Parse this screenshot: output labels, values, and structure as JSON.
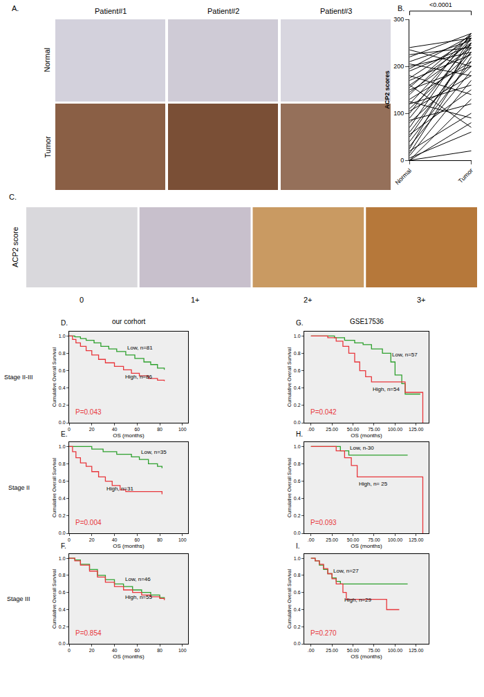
{
  "chart_data": [
    {
      "type": "paired_line",
      "letter": "B.",
      "categories": [
        "Normal",
        "Tumor"
      ],
      "ylabel": "ACP2 scores",
      "ylim": [
        0,
        300
      ],
      "yticks": [
        0,
        100,
        200,
        300
      ],
      "annotation": "<0.0001",
      "color": "#000000",
      "pairs": [
        [
          0,
          20
        ],
        [
          0,
          80
        ],
        [
          0,
          130
        ],
        [
          5,
          60
        ],
        [
          10,
          170
        ],
        [
          15,
          220
        ],
        [
          20,
          100
        ],
        [
          25,
          250
        ],
        [
          30,
          190
        ],
        [
          40,
          210
        ],
        [
          50,
          240
        ],
        [
          55,
          150
        ],
        [
          60,
          230
        ],
        [
          70,
          260
        ],
        [
          80,
          200
        ],
        [
          85,
          120
        ],
        [
          90,
          250
        ],
        [
          100,
          270
        ],
        [
          105,
          180
        ],
        [
          110,
          230
        ],
        [
          120,
          260
        ],
        [
          125,
          90
        ],
        [
          130,
          210
        ],
        [
          140,
          265
        ],
        [
          145,
          240
        ],
        [
          150,
          200
        ],
        [
          155,
          270
        ],
        [
          160,
          250
        ],
        [
          170,
          225
        ],
        [
          175,
          260
        ],
        [
          180,
          140
        ],
        [
          190,
          245
        ],
        [
          195,
          265
        ],
        [
          200,
          230
        ],
        [
          205,
          180
        ],
        [
          210,
          255
        ],
        [
          220,
          270
        ],
        [
          225,
          240
        ],
        [
          235,
          200
        ],
        [
          240,
          260
        ],
        [
          160,
          70
        ],
        [
          120,
          160
        ]
      ]
    },
    {
      "type": "line",
      "letter": "D.",
      "title": "our corhort",
      "row_label": "Stage II-III",
      "xlabel": "OS (months)",
      "ylabel": "Cumulative Overall Survival",
      "xlim": [
        0,
        105
      ],
      "xticks": [
        0,
        20,
        40,
        60,
        80,
        100
      ],
      "ylim": [
        0,
        1.05
      ],
      "yticks": [
        {
          "value": 0,
          "label": "0.0"
        },
        {
          "value": 0.2,
          "label": "0.2"
        },
        {
          "value": 0.4,
          "label": "0.4"
        },
        {
          "value": 0.6,
          "label": "0.6"
        },
        {
          "value": 0.8,
          "label": "0.8"
        },
        {
          "value": 1,
          "label": "1.0"
        }
      ],
      "annotation": "P=0.043",
      "series": [
        {
          "name": "Low, n=81",
          "color": "#2ca02c",
          "line_style": "step",
          "x": [
            0,
            5,
            10,
            15,
            22,
            28,
            35,
            42,
            50,
            58,
            66,
            72,
            78,
            84
          ],
          "values": [
            1,
            0.99,
            0.97,
            0.95,
            0.92,
            0.88,
            0.85,
            0.82,
            0.78,
            0.74,
            0.7,
            0.67,
            0.63,
            0.61
          ]
        },
        {
          "name": "High, n=86",
          "color": "#e8363b",
          "line_style": "step",
          "x": [
            0,
            3,
            6,
            10,
            15,
            20,
            26,
            32,
            40,
            48,
            55,
            62,
            70,
            78,
            84
          ],
          "values": [
            1,
            0.96,
            0.92,
            0.88,
            0.83,
            0.78,
            0.73,
            0.69,
            0.65,
            0.61,
            0.57,
            0.54,
            0.51,
            0.49,
            0.48
          ]
        }
      ]
    },
    {
      "type": "line",
      "letter": "E.",
      "row_label": "Stage II",
      "xlabel": "OS (months)",
      "ylabel": "Cumulative Overall Survival",
      "xlim": [
        0,
        105
      ],
      "xticks": [
        0,
        20,
        40,
        60,
        80,
        100
      ],
      "ylim": [
        0,
        1.05
      ],
      "yticks": [
        {
          "value": 0,
          "label": "0.0"
        },
        {
          "value": 0.2,
          "label": "0.2"
        },
        {
          "value": 0.4,
          "label": "0.4"
        },
        {
          "value": 0.6,
          "label": "0.6"
        },
        {
          "value": 0.8,
          "label": "0.8"
        },
        {
          "value": 1,
          "label": "1.0"
        }
      ],
      "annotation": "P=0.004",
      "series": [
        {
          "name": "Low, n=35",
          "color": "#2ca02c",
          "line_style": "step",
          "x": [
            0,
            20,
            30,
            42,
            55,
            62,
            70,
            78,
            82
          ],
          "values": [
            1,
            0.97,
            0.94,
            0.91,
            0.88,
            0.85,
            0.8,
            0.77,
            0.75
          ]
        },
        {
          "name": "High, n=31",
          "color": "#e8363b",
          "line_style": "step",
          "x": [
            0,
            3,
            6,
            10,
            15,
            20,
            26,
            32,
            38,
            45,
            50,
            82
          ],
          "values": [
            1,
            0.94,
            0.87,
            0.81,
            0.77,
            0.71,
            0.65,
            0.6,
            0.55,
            0.5,
            0.48,
            0.45
          ]
        }
      ]
    },
    {
      "type": "line",
      "letter": "F.",
      "row_label": "Stage III",
      "xlabel": "OS (months)",
      "ylabel": "Cumulative Overall Survival",
      "xlim": [
        0,
        105
      ],
      "xticks": [
        0,
        20,
        40,
        60,
        80,
        100
      ],
      "ylim": [
        0,
        1.05
      ],
      "yticks": [
        {
          "value": 0,
          "label": "0.0"
        },
        {
          "value": 0.2,
          "label": "0.2"
        },
        {
          "value": 0.4,
          "label": "0.4"
        },
        {
          "value": 0.6,
          "label": "0.6"
        },
        {
          "value": 0.8,
          "label": "0.8"
        },
        {
          "value": 1,
          "label": "1.0"
        }
      ],
      "annotation": "P=0.854",
      "series": [
        {
          "name": "Low, n=46",
          "color": "#2ca02c",
          "line_style": "step",
          "x": [
            0,
            5,
            10,
            18,
            25,
            32,
            40,
            48,
            56,
            64,
            72,
            80,
            84
          ],
          "values": [
            1,
            0.98,
            0.93,
            0.87,
            0.8,
            0.75,
            0.7,
            0.67,
            0.63,
            0.6,
            0.57,
            0.54,
            0.52
          ]
        },
        {
          "name": "High, n=55",
          "color": "#e8363b",
          "line_style": "step",
          "x": [
            0,
            5,
            10,
            18,
            25,
            32,
            40,
            48,
            56,
            64,
            72,
            80,
            84
          ],
          "values": [
            1,
            0.97,
            0.92,
            0.85,
            0.78,
            0.72,
            0.67,
            0.63,
            0.6,
            0.57,
            0.55,
            0.53,
            0.51
          ]
        }
      ]
    },
    {
      "type": "line",
      "letter": "G.",
      "title": "GSE17536",
      "xlabel": "OS (months)",
      "ylabel": "Cumulative Overall Survival",
      "xlim": [
        -8,
        140
      ],
      "xticks": [
        {
          "value": 0,
          "label": ".00"
        },
        {
          "value": 25,
          "label": "25.00"
        },
        {
          "value": 50,
          "label": "50.00"
        },
        {
          "value": 75,
          "label": "75.00"
        },
        {
          "value": 100,
          "label": "100.00"
        },
        {
          "value": 125,
          "label": "125.00"
        }
      ],
      "ylim": [
        0,
        1.05
      ],
      "yticks": [
        {
          "value": 0,
          "label": "0.0"
        },
        {
          "value": 0.2,
          "label": "0.2"
        },
        {
          "value": 0.4,
          "label": "0.4"
        },
        {
          "value": 0.6,
          "label": "0.6"
        },
        {
          "value": 0.8,
          "label": "0.8"
        },
        {
          "value": 1,
          "label": "1.0"
        }
      ],
      "annotation": "P=0.042",
      "series": [
        {
          "name": "Low, n=57",
          "color": "#2ca02c",
          "line_style": "step",
          "x": [
            0,
            28,
            40,
            52,
            62,
            72,
            85,
            95,
            100,
            108,
            112,
            130
          ],
          "values": [
            1,
            0.98,
            0.95,
            0.92,
            0.9,
            0.85,
            0.8,
            0.7,
            0.55,
            0.45,
            0.33,
            0.33
          ]
        },
        {
          "name": "High, n=54",
          "color": "#e8363b",
          "line_style": "step",
          "x": [
            0,
            20,
            30,
            38,
            45,
            52,
            58,
            65,
            72,
            80,
            105,
            112,
            132,
            133
          ],
          "values": [
            1,
            0.98,
            0.94,
            0.88,
            0.8,
            0.7,
            0.6,
            0.53,
            0.47,
            0.47,
            0.47,
            0.35,
            0.35,
            0
          ]
        }
      ]
    },
    {
      "type": "line",
      "letter": "H.",
      "xlabel": "OS (months)",
      "ylabel": "Cumulative Overall Survival",
      "xlim": [
        -8,
        140
      ],
      "xticks": [
        {
          "value": 0,
          "label": ".00"
        },
        {
          "value": 25,
          "label": "25.00"
        },
        {
          "value": 50,
          "label": "50.00"
        },
        {
          "value": 75,
          "label": "75.00"
        },
        {
          "value": 100,
          "label": "100.00"
        },
        {
          "value": 125,
          "label": "125.00"
        }
      ],
      "ylim": [
        0,
        1.05
      ],
      "yticks": [
        {
          "value": 0,
          "label": "0.0"
        },
        {
          "value": 0.2,
          "label": "0.2"
        },
        {
          "value": 0.4,
          "label": "0.4"
        },
        {
          "value": 0.6,
          "label": "0.6"
        },
        {
          "value": 0.8,
          "label": "0.8"
        },
        {
          "value": 1,
          "label": "1.0"
        }
      ],
      "annotation": "P=0.093",
      "series": [
        {
          "name": "Low, n-30",
          "color": "#2ca02c",
          "line_style": "step",
          "x": [
            0,
            35,
            45,
            115
          ],
          "values": [
            1,
            0.95,
            0.9,
            0.9
          ]
        },
        {
          "name": "High, n= 25",
          "color": "#e8363b",
          "line_style": "step",
          "x": [
            0,
            30,
            40,
            48,
            55,
            130,
            133
          ],
          "values": [
            1,
            0.95,
            0.87,
            0.78,
            0.65,
            0.65,
            0
          ]
        }
      ]
    },
    {
      "type": "line",
      "letter": "I.",
      "xlabel": "OS (months)",
      "ylabel": "Cumulative Overall Survival",
      "xlim": [
        -8,
        140
      ],
      "xticks": [
        {
          "value": 0,
          "label": ".00"
        },
        {
          "value": 25,
          "label": "25.00"
        },
        {
          "value": 50,
          "label": "50.00"
        },
        {
          "value": 75,
          "label": "75.00"
        },
        {
          "value": 100,
          "label": "100.00"
        },
        {
          "value": 125,
          "label": "125.00"
        }
      ],
      "ylim": [
        0,
        1.05
      ],
      "yticks": [
        {
          "value": 0,
          "label": "0.0"
        },
        {
          "value": 0.2,
          "label": "0.2"
        },
        {
          "value": 0.4,
          "label": "0.4"
        },
        {
          "value": 0.6,
          "label": "0.6"
        },
        {
          "value": 0.8,
          "label": "0.8"
        },
        {
          "value": 1,
          "label": "1.0"
        }
      ],
      "annotation": "P=0.270",
      "series": [
        {
          "name": "Low, n=27",
          "color": "#2ca02c",
          "line_style": "step",
          "x": [
            0,
            5,
            10,
            15,
            20,
            25,
            30,
            35,
            115
          ],
          "values": [
            1,
            0.97,
            0.92,
            0.87,
            0.82,
            0.77,
            0.73,
            0.7,
            0.7
          ]
        },
        {
          "name": "High, n=29",
          "color": "#e8363b",
          "line_style": "step",
          "x": [
            0,
            5,
            10,
            15,
            20,
            25,
            30,
            38,
            42,
            85,
            90,
            105
          ],
          "values": [
            1,
            0.97,
            0.93,
            0.88,
            0.82,
            0.76,
            0.7,
            0.6,
            0.52,
            0.52,
            0.4,
            0.4
          ]
        }
      ]
    }
  ],
  "image_panels": {
    "A": {
      "letter": "A.",
      "columns": [
        "Patient#1",
        "Patient#2",
        "Patient#3"
      ],
      "rows": [
        "Normal",
        "Tumor"
      ]
    },
    "C": {
      "letter": "C.",
      "label": "ACP2 score",
      "columns": [
        "0",
        "1+",
        "2+",
        "3+"
      ]
    }
  }
}
